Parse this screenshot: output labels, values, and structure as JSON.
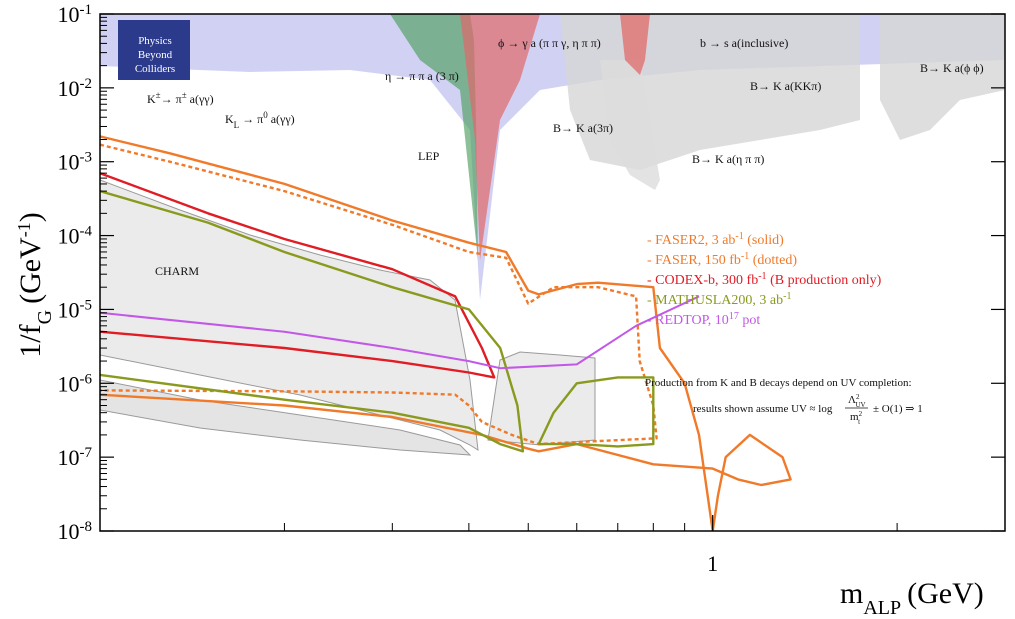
{
  "chart_data": {
    "type": "line",
    "title": "",
    "xlabel": "m",
    "xlabel_sub": "ALP",
    "xlabel_unit": "(GeV)",
    "ylabel": "1/f",
    "ylabel_sub": "G",
    "ylabel_unit_open": "(GeV",
    "ylabel_unit_sup": "-1",
    "ylabel_unit_close": ")",
    "x_scale": "log",
    "y_scale": "log",
    "xlim": [
      0.1,
      3.0
    ],
    "ylim": [
      1e-08,
      0.1
    ],
    "grid": false,
    "legend_position": "right-middle",
    "x_ticks": [
      {
        "value": 1,
        "label": "1"
      }
    ],
    "y_ticks": [
      {
        "value": 0.1,
        "base": "10",
        "exp": "-1"
      },
      {
        "value": 0.01,
        "base": "10",
        "exp": "-2"
      },
      {
        "value": 0.001,
        "base": "10",
        "exp": "-3"
      },
      {
        "value": 0.0001,
        "base": "10",
        "exp": "-4"
      },
      {
        "value": 1e-05,
        "base": "10",
        "exp": "-5"
      },
      {
        "value": 1e-06,
        "base": "10",
        "exp": "-6"
      },
      {
        "value": 1e-07,
        "base": "10",
        "exp": "-7"
      },
      {
        "value": 1e-08,
        "base": "10",
        "exp": "-8"
      }
    ],
    "colors": {
      "faser": "#f07a2a",
      "codex": "#e01c24",
      "mathusla": "#8a9a1e",
      "redtop": "#c257e8",
      "lep": "#3333cc",
      "eta_label": "#2e8b2e",
      "phi_label": "#e03030",
      "excluded_gray": "#d8d8d8",
      "charm_fill": "#ebebeb"
    },
    "series": [
      {
        "id": "faser2_solid",
        "points": [
          [
            0.1,
            0.0022
          ],
          [
            0.13,
            0.0013
          ],
          [
            0.2,
            0.0005
          ],
          [
            0.3,
            0.00016
          ],
          [
            0.4,
            8e-05
          ],
          [
            0.46,
            6e-05
          ],
          [
            0.5,
            1.8e-05
          ],
          [
            0.52,
            1.6e-05
          ],
          [
            0.6,
            2.2e-05
          ],
          [
            0.65,
            2.3e-05
          ],
          [
            0.8,
            2e-05
          ],
          [
            0.82,
            3e-06
          ],
          [
            0.9,
            1e-06
          ],
          [
            0.95,
            2e-07
          ],
          [
            1.0,
            1e-08
          ],
          [
            1.02,
            3e-08
          ],
          [
            1.05,
            1e-07
          ],
          [
            1.15,
            2e-07
          ],
          [
            1.3,
            1e-07
          ],
          [
            1.34,
            5e-08
          ],
          [
            1.2,
            4.2e-08
          ],
          [
            1.1,
            5e-08
          ],
          [
            1.0,
            7e-08
          ],
          [
            0.8,
            8e-08
          ],
          [
            0.6,
            1.5e-07
          ],
          [
            0.52,
            1.2e-07
          ],
          [
            0.5,
            1.3e-07
          ],
          [
            0.42,
            2e-07
          ],
          [
            0.3,
            3.5e-07
          ],
          [
            0.2,
            5e-07
          ],
          [
            0.1,
            7e-07
          ]
        ]
      },
      {
        "id": "faser_dotted",
        "dashed": true,
        "points": [
          [
            0.1,
            0.0017
          ],
          [
            0.13,
            0.001
          ],
          [
            0.2,
            0.0004
          ],
          [
            0.3,
            0.00014
          ],
          [
            0.4,
            6e-05
          ],
          [
            0.46,
            5e-05
          ],
          [
            0.5,
            1.2e-05
          ],
          [
            0.55,
            2e-05
          ],
          [
            0.65,
            2e-05
          ],
          [
            0.75,
            1.5e-05
          ],
          [
            0.76,
            2e-06
          ],
          [
            0.8,
            5e-07
          ],
          [
            0.81,
            1.8e-07
          ],
          [
            0.6,
            1.6e-07
          ],
          [
            0.52,
            1.5e-07
          ],
          [
            0.47,
            2e-07
          ],
          [
            0.42,
            3e-07
          ],
          [
            0.4,
            5e-07
          ],
          [
            0.38,
            7e-07
          ],
          [
            0.3,
            7.5e-07
          ],
          [
            0.2,
            7.8e-07
          ],
          [
            0.1,
            8e-07
          ]
        ]
      },
      {
        "id": "codex_b",
        "points": [
          [
            0.1,
            0.0007
          ],
          [
            0.15,
            0.0002
          ],
          [
            0.2,
            9e-05
          ],
          [
            0.3,
            3.5e-05
          ],
          [
            0.38,
            1.5e-05
          ],
          [
            0.42,
            3e-06
          ],
          [
            0.44,
            1.2e-06
          ],
          [
            0.4,
            1.4e-06
          ],
          [
            0.3,
            2e-06
          ],
          [
            0.2,
            3e-06
          ],
          [
            0.1,
            5e-06
          ]
        ]
      },
      {
        "id": "mathusla200",
        "points": [
          [
            0.1,
            0.0004
          ],
          [
            0.15,
            0.00015
          ],
          [
            0.2,
            6e-05
          ],
          [
            0.3,
            2e-05
          ],
          [
            0.4,
            1e-05
          ],
          [
            0.45,
            3e-06
          ],
          [
            0.48,
            5e-07
          ],
          [
            0.49,
            1.2e-07
          ],
          [
            0.45,
            1.5e-07
          ],
          [
            0.4,
            2.5e-07
          ],
          [
            0.3,
            4e-07
          ],
          [
            0.2,
            6e-07
          ],
          [
            0.1,
            1.3e-06
          ]
        ]
      },
      {
        "id": "mathusla200_right",
        "points": [
          [
            0.52,
            1.5e-07
          ],
          [
            0.55,
            4e-07
          ],
          [
            0.6,
            1e-06
          ],
          [
            0.7,
            1.2e-06
          ],
          [
            0.8,
            1.2e-06
          ],
          [
            0.8,
            1.5e-07
          ],
          [
            0.7,
            1.4e-07
          ],
          [
            0.6,
            1.5e-07
          ],
          [
            0.52,
            1.5e-07
          ]
        ]
      },
      {
        "id": "redtop",
        "points": [
          [
            0.1,
            9e-06
          ],
          [
            0.2,
            5e-06
          ],
          [
            0.3,
            3e-06
          ],
          [
            0.4,
            2e-06
          ],
          [
            0.45,
            1.6e-06
          ],
          [
            0.6,
            1.8e-06
          ],
          [
            0.75,
            6e-06
          ],
          [
            0.95,
            1.5e-05
          ]
        ]
      }
    ],
    "legend": [
      {
        "text": "- FASER2, 3 ab",
        "sup": "-1",
        "tail": " (solid)",
        "color": "#f07a2a"
      },
      {
        "text": "- FASER, 150 fb",
        "sup": "-1",
        "tail": " (dotted)",
        "color": "#f07a2a"
      },
      {
        "text": "- CODEX-b, 300 fb",
        "sup": "-1",
        "tail": " (B production only)",
        "color": "#e01c24"
      },
      {
        "text": "- MATHUSLA200, 3 ab",
        "sup": "-1",
        "tail": "",
        "color": "#8a9a1e"
      },
      {
        "text": "- REDTOP, 10",
        "sup": "17",
        "tail": " pot",
        "color": "#c257e8"
      }
    ],
    "annotations": {
      "charm": "CHARM",
      "lep": "LEP",
      "kpm": "K",
      "kpm_tail": "→ π",
      "kpm_decay": " a(γγ)",
      "kl": "K",
      "kl_sub": "L",
      "kl_tail": " → π",
      "kl_sup": "0",
      "kl_decay": " a(γγ)",
      "pm": "±",
      "eta": "η → π π a (3 π)",
      "phi": "ϕ → γ a (π π γ, η π π)",
      "b_s": "b → s a(inclusive)",
      "b_kkkpi": "B→ K a(KKπ)",
      "b_kphiphi": "B→ K a(ϕ ϕ)",
      "b_k3pi": "B→ K a(3π)",
      "b_ketapipi": "B→ K a(η π π)",
      "note_line1": "Production from K and B decays depend on UV completion:",
      "note_line2": "results shown assume UV ≈ log",
      "note_frac_num": "Λ",
      "note_frac_num_sub": "UV",
      "note_frac_num_sup": "2",
      "note_frac_den": "m",
      "note_frac_den_sub": "t",
      "note_frac_den_sup": "2",
      "note_tail": "± O(1) ⇒ 1"
    }
  },
  "logo": {
    "line1": "Physics",
    "line2": "Beyond",
    "line3": "Colliders"
  }
}
